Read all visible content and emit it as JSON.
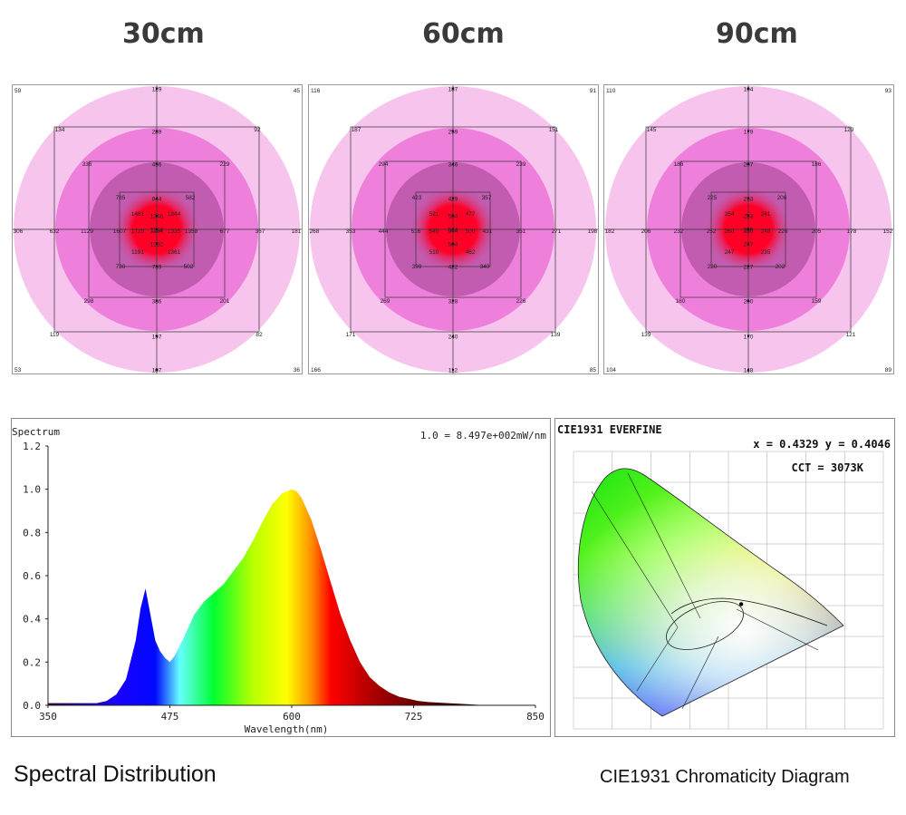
{
  "panels": [
    {
      "title": "30cm",
      "ring_gradient": [
        "#f7c4ed",
        "#ee80dc",
        "#c25cb0",
        "#ff0026"
      ],
      "outer_corners": [
        "59",
        "45",
        "53",
        "36"
      ],
      "vertical": [
        "129",
        "289",
        "456",
        "844",
        "1346",
        "1164",
        "1252",
        "739",
        "386",
        "197",
        "107"
      ],
      "horizontal": [
        "306",
        "632",
        "1129",
        "1607",
        "1729",
        "1164",
        "1335",
        "1358",
        "677",
        "367",
        "181"
      ],
      "box_large": [
        "134",
        "92",
        "119",
        "82"
      ],
      "box_mid": [
        "336",
        "229",
        "298",
        "201"
      ],
      "box_inner": [
        "785",
        "582",
        "730",
        "502"
      ],
      "inner_grid": [
        "1461",
        "1344",
        "1191",
        "1361",
        "1054"
      ]
    },
    {
      "title": "60cm",
      "ring_gradient": [
        "#f7c4ed",
        "#ee80dc",
        "#c25cb0",
        "#ff0026"
      ],
      "outer_corners": [
        "116",
        "91",
        "166",
        "85"
      ],
      "vertical": [
        "187",
        "259",
        "346",
        "429",
        "554",
        "544",
        "504",
        "422",
        "328",
        "240",
        "112"
      ],
      "horizontal": [
        "268",
        "353",
        "444",
        "516",
        "549",
        "544",
        "500",
        "431",
        "351",
        "271",
        "198"
      ],
      "box_large": [
        "187",
        "151",
        "171",
        "139"
      ],
      "box_mid": [
        "294",
        "239",
        "269",
        "226"
      ],
      "box_inner": [
        "423",
        "357",
        "399",
        "340"
      ],
      "inner_grid": [
        "521",
        "477",
        "510",
        "462",
        "544"
      ]
    },
    {
      "title": "90cm",
      "ring_gradient": [
        "#f7c4ed",
        "#ee80dc",
        "#c25cb0",
        "#ff0026"
      ],
      "outer_corners": [
        "110",
        "93",
        "104",
        "89"
      ],
      "vertical": [
        "104",
        "179",
        "207",
        "233",
        "253",
        "259",
        "247",
        "227",
        "200",
        "170",
        "148"
      ],
      "horizontal": [
        "182",
        "206",
        "232",
        "252",
        "260",
        "259",
        "248",
        "226",
        "205",
        "178",
        "152"
      ],
      "box_large": [
        "145",
        "129",
        "139",
        "121"
      ],
      "box_mid": [
        "186",
        "186",
        "180",
        "159"
      ],
      "box_inner": [
        "225",
        "206",
        "220",
        "202"
      ],
      "inner_grid": [
        "254",
        "241",
        "247",
        "235",
        "253"
      ]
    }
  ],
  "chart_data": [
    {
      "type": "area",
      "title": "Spectrum",
      "scale_note": "1.0 = 8.497e+002mW/nm",
      "xlabel": "Wavelength(nm)",
      "ylabel": "Spectrum",
      "xlim": [
        350,
        850
      ],
      "ylim": [
        0,
        1.2
      ],
      "x_ticks": [
        "350",
        "475",
        "600",
        "725",
        "850"
      ],
      "y_ticks": [
        "0.0",
        "0.2",
        "0.4",
        "0.6",
        "0.8",
        "1.0",
        "1.2"
      ],
      "x": [
        350,
        380,
        400,
        410,
        420,
        430,
        440,
        445,
        450,
        455,
        460,
        465,
        470,
        475,
        480,
        490,
        500,
        510,
        520,
        530,
        540,
        550,
        560,
        570,
        580,
        590,
        600,
        605,
        610,
        620,
        630,
        640,
        650,
        660,
        670,
        680,
        690,
        700,
        710,
        720,
        730,
        740,
        760,
        780,
        800
      ],
      "y": [
        0.01,
        0.01,
        0.01,
        0.02,
        0.05,
        0.12,
        0.3,
        0.45,
        0.54,
        0.42,
        0.3,
        0.25,
        0.22,
        0.2,
        0.23,
        0.32,
        0.42,
        0.48,
        0.52,
        0.56,
        0.62,
        0.68,
        0.76,
        0.85,
        0.93,
        0.98,
        1.0,
        0.99,
        0.96,
        0.86,
        0.72,
        0.57,
        0.42,
        0.3,
        0.2,
        0.13,
        0.09,
        0.06,
        0.04,
        0.03,
        0.02,
        0.015,
        0.01,
        0.005,
        0.0
      ]
    },
    {
      "type": "scatter",
      "title": "CIE1931  EVERFINE",
      "readout": "x = 0.4329 y = 0.4046",
      "cct": "CCT = 3073K",
      "x": [
        0.4329
      ],
      "y": [
        0.4046
      ]
    }
  ],
  "captions": {
    "spectral": "Spectral Distribution",
    "cie": "CIE1931 Chromaticity Diagram"
  }
}
